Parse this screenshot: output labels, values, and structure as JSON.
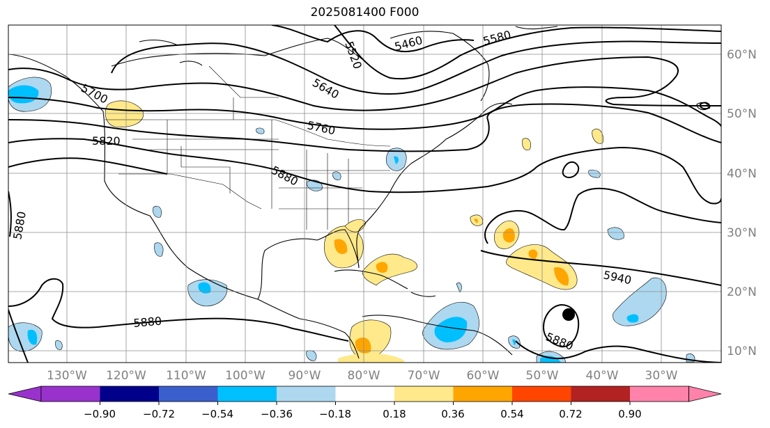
{
  "title": "2025081400 F000",
  "map": {
    "lon_labels": [
      "130°W",
      "120°W",
      "110°W",
      "100°W",
      "90°W",
      "80°W",
      "70°W",
      "60°W",
      "50°W",
      "40°W",
      "30°W"
    ],
    "lat_labels": [
      "60°N",
      "50°N",
      "40°N",
      "30°N",
      "20°N",
      "10°N"
    ],
    "contour_labels": [
      "5460",
      "5520",
      "5580",
      "5640",
      "5700",
      "5760",
      "5820",
      "5880",
      "5880",
      "5880",
      "5880",
      "5940"
    ],
    "label_color": "#808080",
    "marker": "storm-center-dot"
  },
  "colorbar": {
    "ticks": [
      "−0.90",
      "−0.72",
      "−0.54",
      "−0.36",
      "−0.18",
      "0.18",
      "0.36",
      "0.54",
      "0.72",
      "0.90"
    ],
    "colors": [
      "#9932cc",
      "#00008b",
      "#3a5fcd",
      "#00bfff",
      "#add8f0",
      "#ffffff",
      "#ffe98a",
      "#ffa500",
      "#ff4500",
      "#b22222",
      "#ff82ab"
    ]
  }
}
